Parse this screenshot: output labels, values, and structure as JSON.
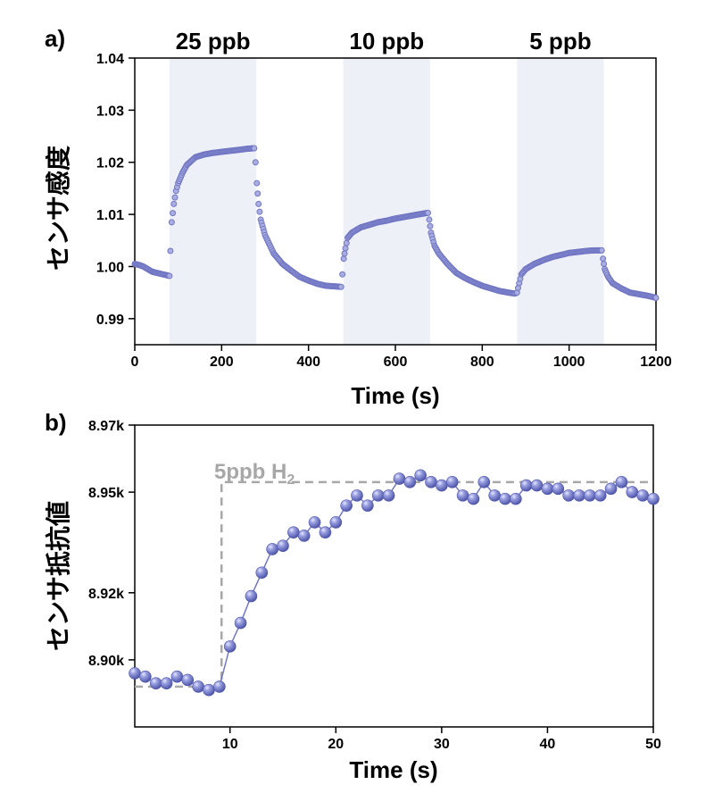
{
  "chart_data": [
    {
      "panel_label": "a)",
      "type": "scatter",
      "xlabel": "Time (s)",
      "ylabel": "センサ感度",
      "xlim": [
        0,
        1200
      ],
      "ylim": [
        0.985,
        1.04
      ],
      "xticks": [
        0,
        200,
        400,
        600,
        800,
        1000,
        1200
      ],
      "xtick_labels": [
        "0",
        "200",
        "400",
        "600",
        "800",
        "1000",
        "1200"
      ],
      "yticks": [
        0.99,
        1.0,
        1.01,
        1.02,
        1.03,
        1.04
      ],
      "ytick_labels": [
        "0.99",
        "1.00",
        "1.01",
        "1.02",
        "1.03",
        "1.04"
      ],
      "grid": false,
      "marker_color": "#7277c4",
      "band_color": "#eef0f8",
      "exposure_windows": [
        {
          "label": "25 ppb",
          "start": 80,
          "end": 280
        },
        {
          "label": "10 ppb",
          "start": 480,
          "end": 680
        },
        {
          "label": "5 ppb",
          "start": 880,
          "end": 1080
        }
      ],
      "x": [
        0,
        10,
        20,
        30,
        40,
        50,
        60,
        70,
        80,
        82,
        85,
        90,
        95,
        100,
        110,
        120,
        140,
        160,
        180,
        200,
        220,
        240,
        260,
        275,
        278,
        281,
        285,
        290,
        300,
        320,
        340,
        360,
        380,
        400,
        420,
        440,
        460,
        475,
        478,
        481,
        485,
        490,
        500,
        520,
        540,
        560,
        580,
        600,
        620,
        640,
        660,
        675,
        678,
        682,
        690,
        700,
        720,
        740,
        760,
        780,
        800,
        820,
        840,
        860,
        875,
        880,
        885,
        890,
        900,
        920,
        940,
        960,
        980,
        1000,
        1020,
        1040,
        1060,
        1075,
        1078,
        1082,
        1090,
        1100,
        1120,
        1140,
        1160,
        1180,
        1200
      ],
      "y": [
        1.0005,
        1.0003,
        1.0,
        0.9995,
        0.999,
        0.9988,
        0.9986,
        0.9984,
        0.9982,
        1.003,
        1.0085,
        1.012,
        1.0145,
        1.016,
        1.018,
        1.0195,
        1.021,
        1.0215,
        1.0218,
        1.022,
        1.0222,
        1.0224,
        1.0226,
        1.0227,
        1.02,
        1.016,
        1.012,
        1.009,
        1.006,
        1.0025,
        1.0005,
        0.9992,
        0.998,
        0.9973,
        0.9967,
        0.9963,
        0.9962,
        0.9961,
        0.9985,
        1.0015,
        1.0035,
        1.0055,
        1.0065,
        1.0075,
        1.008,
        1.0085,
        1.0088,
        1.0092,
        1.0095,
        1.0098,
        1.0101,
        1.0103,
        1.009,
        1.0065,
        1.004,
        1.0025,
        1.0005,
        0.9988,
        0.9978,
        0.997,
        0.9963,
        0.9958,
        0.9953,
        0.995,
        0.9948,
        0.995,
        0.9968,
        0.9985,
        0.9995,
        1.0005,
        1.0012,
        1.0018,
        1.0022,
        1.0026,
        1.0028,
        1.003,
        1.0031,
        1.0031,
        1.0015,
        0.9995,
        0.998,
        0.9968,
        0.9958,
        0.995,
        0.9947,
        0.9944,
        0.994
      ]
    },
    {
      "panel_label": "b)",
      "type": "line",
      "xlabel": "Time (s)",
      "ylabel": "センサ抵抗値",
      "xlim": [
        1,
        50
      ],
      "ylim": [
        8.88,
        8.97
      ],
      "xticks": [
        10,
        20,
        30,
        40,
        50
      ],
      "xtick_labels": [
        "10",
        "20",
        "30",
        "40",
        "50"
      ],
      "yticks": [
        8.9,
        8.92,
        8.95,
        8.97
      ],
      "ytick_labels": [
        "8.90k",
        "8.92k",
        "8.95k",
        "8.97k"
      ],
      "grid": false,
      "marker_color": "#7277c4",
      "annotation": {
        "text": "5ppb H",
        "subscript": "2"
      },
      "step_line": {
        "color": "#a7a7a7",
        "x": [
          1,
          9.2,
          9.2,
          50
        ],
        "y": [
          8.892,
          8.892,
          8.953,
          8.953
        ]
      },
      "x": [
        1,
        2,
        3,
        4,
        5,
        6,
        7,
        8,
        9,
        10,
        11,
        12,
        13,
        14,
        15,
        16,
        17,
        18,
        19,
        20,
        21,
        22,
        23,
        24,
        25,
        26,
        27,
        28,
        29,
        30,
        31,
        32,
        33,
        34,
        35,
        36,
        37,
        38,
        39,
        40,
        41,
        42,
        43,
        44,
        45,
        46,
        47,
        48,
        49,
        50
      ],
      "y": [
        8.896,
        8.895,
        8.893,
        8.893,
        8.895,
        8.894,
        8.892,
        8.891,
        8.892,
        8.904,
        8.911,
        8.919,
        8.926,
        8.933,
        8.934,
        8.938,
        8.937,
        8.941,
        8.938,
        8.941,
        8.946,
        8.949,
        8.946,
        8.949,
        8.949,
        8.954,
        8.953,
        8.955,
        8.953,
        8.952,
        8.953,
        8.949,
        8.948,
        8.953,
        8.949,
        8.948,
        8.948,
        8.952,
        8.952,
        8.951,
        8.951,
        8.949,
        8.949,
        8.949,
        8.949,
        8.951,
        8.953,
        8.95,
        8.949,
        8.948
      ]
    }
  ]
}
